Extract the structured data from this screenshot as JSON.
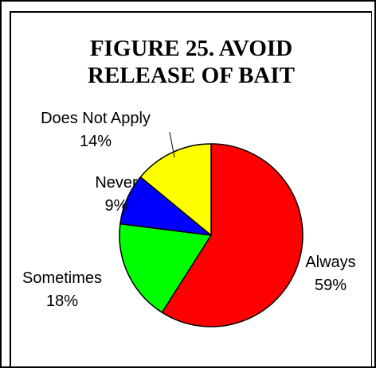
{
  "chart_data": {
    "type": "pie",
    "title_lines": [
      "FIGURE 25.  AVOID",
      "RELEASE OF BAIT"
    ],
    "slices": [
      {
        "label": "Always",
        "value": 59,
        "pct_label": "59%",
        "color": "#ff0000"
      },
      {
        "label": "Sometimes",
        "value": 18,
        "pct_label": "18%",
        "color": "#00ff00"
      },
      {
        "label": "Never",
        "value": 9,
        "pct_label": "9%",
        "color": "#0000ff"
      },
      {
        "label": "Does Not Apply",
        "value": 14,
        "pct_label": "14%",
        "color": "#ffff00"
      }
    ],
    "start": "12 o'clock",
    "direction": "clockwise",
    "legend": "none"
  }
}
